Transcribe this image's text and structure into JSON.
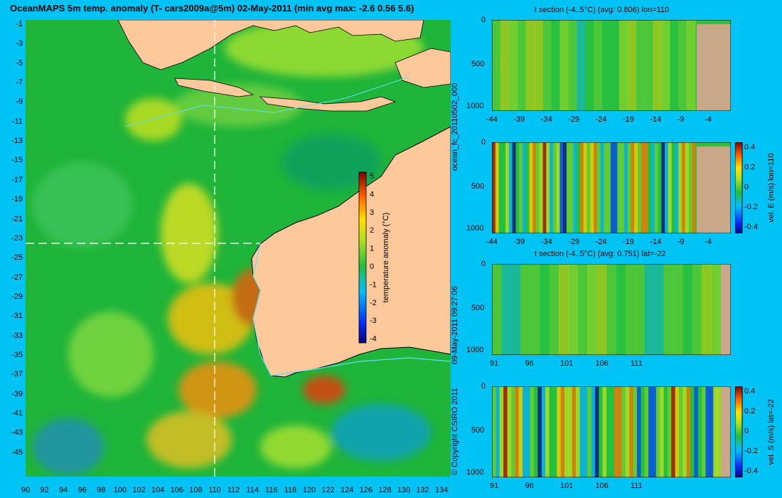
{
  "title": "OceanMAPS 5m temp. anomaly (T- cars2009a@5m) 02-May-2011 (min avg max: -2.6 0.56 5.6)",
  "map": {
    "lat_ticks": [
      "-1",
      "-3",
      "-5",
      "-7",
      "-9",
      "-11",
      "-13",
      "-15",
      "-17",
      "-19",
      "-21",
      "-23",
      "-25",
      "-27",
      "-29",
      "-31",
      "-33",
      "-35",
      "-37",
      "-39",
      "-41",
      "-43",
      "-45"
    ],
    "lon_ticks": [
      "90",
      "92",
      "94",
      "96",
      "98",
      "100",
      "102",
      "104",
      "106",
      "108",
      "110",
      "112",
      "114",
      "116",
      "118",
      "120",
      "122",
      "124",
      "126",
      "128",
      "130",
      "132",
      "134"
    ],
    "colorbar_ticks": [
      "5",
      "4",
      "3",
      "2",
      "1",
      "0",
      "-1",
      "-2",
      "-3",
      "-4"
    ],
    "colorbar_label": "temperature anomaly (°C)",
    "copyright": "© Copyright CSIRO 2011",
    "timestamp": "09-May-2011 09:27:06",
    "forecast_id": "ocean_fc_20110502_000",
    "colors": {
      "land": "#fdc99b",
      "background": "#00c3f5",
      "ocean": "#1fb43a"
    }
  },
  "panels": [
    {
      "title": "t section (-4..5°C) (avg: 0.806) lon=110",
      "x_ticks": [
        "-44",
        "-39",
        "-34",
        "-29",
        "-24",
        "-19",
        "-14",
        "-9",
        "-4"
      ],
      "y_ticks": [
        "0",
        "500",
        "1000"
      ],
      "colorbar": null
    },
    {
      "title": "",
      "x_ticks": [
        "-44",
        "-39",
        "-34",
        "-29",
        "-24",
        "-19",
        "-14",
        "-9",
        "-4"
      ],
      "y_ticks": [
        "0",
        "500",
        "1000"
      ],
      "colorbar": {
        "ticks": [
          "0.4",
          "0.2",
          "0",
          "-0.2",
          "-0.4"
        ],
        "label": "vel. E (m/s) lon=110"
      }
    },
    {
      "title": "t section (-4..5°C) (avg: 0.751) lat=-22",
      "x_ticks": [
        "91",
        "96",
        "101",
        "106",
        "111"
      ],
      "y_ticks": [
        "0",
        "500",
        "1000"
      ],
      "colorbar": null
    },
    {
      "title": "",
      "x_ticks": [
        "91",
        "96",
        "101",
        "106",
        "111"
      ],
      "y_ticks": [
        "0",
        "500",
        "1000"
      ],
      "colorbar": {
        "ticks": [
          "0.4",
          "0.2",
          "0",
          "-0.2",
          "-0.4"
        ],
        "label": "vel. S (m/s) lat=-22"
      }
    }
  ]
}
